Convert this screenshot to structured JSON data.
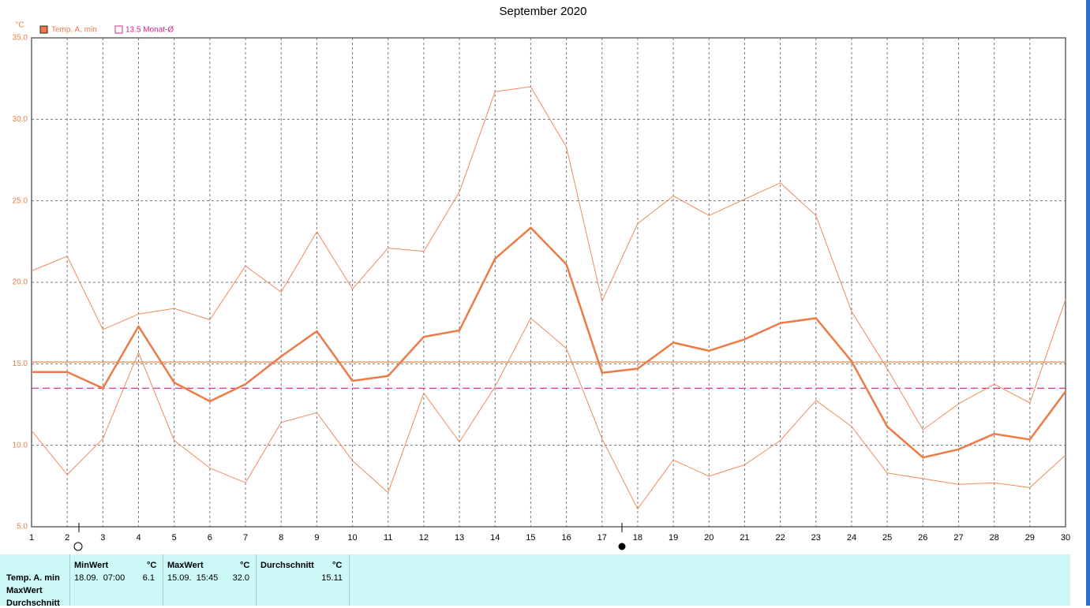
{
  "chart_data": {
    "type": "line",
    "title": "September 2020",
    "y_unit": "°C",
    "x": [
      1,
      2,
      3,
      4,
      5,
      6,
      7,
      8,
      9,
      10,
      11,
      12,
      13,
      14,
      15,
      16,
      17,
      18,
      19,
      20,
      21,
      22,
      23,
      24,
      25,
      26,
      27,
      28,
      29,
      30
    ],
    "xlim": [
      1,
      30
    ],
    "xticks": [
      1,
      2,
      3,
      4,
      5,
      6,
      7,
      8,
      9,
      10,
      11,
      12,
      13,
      14,
      15,
      16,
      17,
      18,
      19,
      20,
      21,
      22,
      23,
      24,
      25,
      26,
      27,
      28,
      29,
      30
    ],
    "ylim": [
      5,
      35
    ],
    "yticks": [
      {
        "value": 5,
        "label": "5.0"
      },
      {
        "value": 10,
        "label": "10.0"
      },
      {
        "value": 15,
        "label": "15.0"
      },
      {
        "value": 20,
        "label": "20.0"
      },
      {
        "value": 25,
        "label": "25.0"
      },
      {
        "value": 30,
        "label": "30.0"
      },
      {
        "value": 35,
        "label": "35.0"
      }
    ],
    "grid": true,
    "series": [
      {
        "name": "Temp. A. min",
        "color": "#ee7a45",
        "width": 2.5,
        "values": [
          14.5,
          14.5,
          13.5,
          17.3,
          13.85,
          12.7,
          13.75,
          15.45,
          17.0,
          13.95,
          14.25,
          16.65,
          17.05,
          21.45,
          23.35,
          21.1,
          14.45,
          14.7,
          16.3,
          15.8,
          16.5,
          17.5,
          17.8,
          15.15,
          11.15,
          9.25,
          9.75,
          10.7,
          10.35,
          13.3
        ]
      },
      {
        "color": "#f08a5a",
        "width": 1,
        "values": [
          20.7,
          21.6,
          17.1,
          18.05,
          18.4,
          17.7,
          21.0,
          19.4,
          23.1,
          19.6,
          22.1,
          21.9,
          25.55,
          31.7,
          32.0,
          28.3,
          18.85,
          23.6,
          25.3,
          24.1,
          25.1,
          26.1,
          24.1,
          18.2,
          14.7,
          10.95,
          12.55,
          13.75,
          12.6,
          18.95
        ]
      },
      {
        "color": "#f08a5a",
        "width": 1,
        "values": [
          10.9,
          8.2,
          10.4,
          15.7,
          10.3,
          8.6,
          7.7,
          11.4,
          12.0,
          9.05,
          7.1,
          13.2,
          10.2,
          13.6,
          17.8,
          15.95,
          10.4,
          6.1,
          9.1,
          8.1,
          8.8,
          10.3,
          12.75,
          11.15,
          8.3,
          7.95,
          7.6,
          7.7,
          7.4,
          9.4
        ]
      }
    ],
    "reference_lines": [
      {
        "value": 15.11,
        "color": "#d9803a",
        "style": "solid"
      },
      {
        "value": 13.5,
        "label": "13.5 Monat-Ø",
        "color": "#e0208a",
        "style": "dashed"
      }
    ]
  },
  "table": {
    "header": [
      "MinWert",
      "°C",
      "MaxWert",
      "°C",
      "Durchschnitt",
      "°C"
    ],
    "row_labels": [
      "Temp. A. min",
      "MaxWert",
      "Durchschnitt"
    ],
    "row": [
      "18.09.  07:00",
      "6.1",
      "15.09.  15:45",
      "32.0",
      "15.11"
    ]
  }
}
